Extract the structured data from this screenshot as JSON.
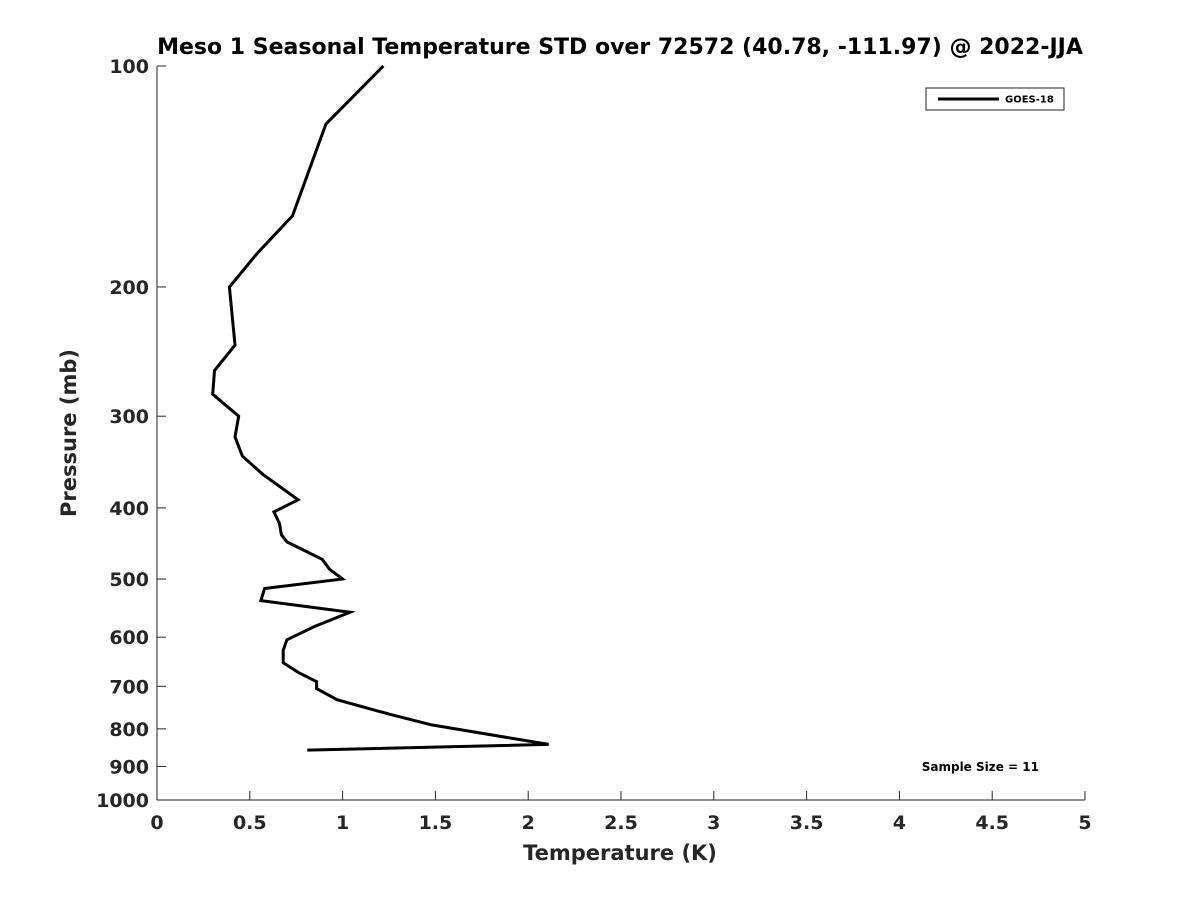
{
  "chart_data": {
    "type": "line",
    "title": "Meso 1 Seasonal Temperature STD over 72572 (40.78, -111.97) @ 2022-JJA",
    "xlabel": "Temperature (K)",
    "ylabel": "Pressure (mb)",
    "xlim": [
      0,
      5
    ],
    "ylim": [
      100,
      1000
    ],
    "y_scale": "log",
    "y_reversed": true,
    "grid": false,
    "legend_position": "top-right",
    "x_ticks": [
      "0",
      "0.5",
      "1",
      "1.5",
      "2",
      "2.5",
      "3",
      "3.5",
      "4",
      "4.5",
      "5"
    ],
    "y_ticks": [
      "100",
      "200",
      "300",
      "400",
      "500",
      "600",
      "700",
      "800",
      "900",
      "1000"
    ],
    "annotation": "Sample Size = 11",
    "series": [
      {
        "name": "GOES-18",
        "color": "#000000",
        "x": [
          1.22,
          0.91,
          0.73,
          0.54,
          0.39,
          0.42,
          0.31,
          0.3,
          0.44,
          0.42,
          0.46,
          0.57,
          0.76,
          0.63,
          0.66,
          0.67,
          0.7,
          0.89,
          0.93,
          1.0,
          0.58,
          0.56,
          1.04,
          0.85,
          0.7,
          0.68,
          0.68,
          0.76,
          0.86,
          0.86,
          0.97,
          1.26,
          1.48,
          2.11,
          0.81
        ],
        "y": [
          100,
          120,
          160,
          180,
          200,
          240,
          260,
          280,
          300,
          320,
          340,
          360,
          390,
          405,
          420,
          435,
          445,
          470,
          485,
          500,
          515,
          535,
          555,
          580,
          605,
          625,
          650,
          670,
          690,
          705,
          730,
          765,
          790,
          840,
          855
        ]
      }
    ]
  }
}
